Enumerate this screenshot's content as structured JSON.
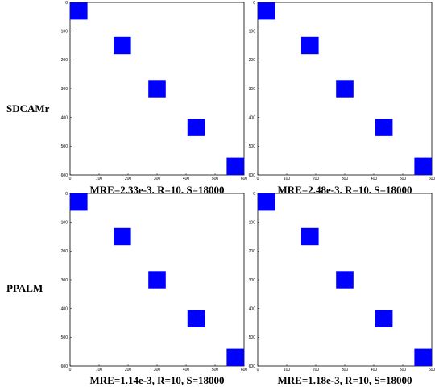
{
  "row_labels": [
    "SDCAMr",
    "PPALM"
  ],
  "chart_data": [
    {
      "type": "heatmap",
      "row_label": "SDCAMr",
      "caption": "MRE=2.33e-3,  R=10,  S=18000",
      "xlim": [
        0,
        600
      ],
      "ylim": [
        0,
        600
      ],
      "y_reversed": true,
      "xticks": [
        0,
        100,
        200,
        300,
        400,
        500,
        600
      ],
      "yticks": [
        0,
        100,
        200,
        300,
        400,
        500,
        600
      ],
      "blocks": [
        {
          "x0": 0,
          "x1": 60,
          "y0": 0,
          "y1": 60
        },
        {
          "x0": 150,
          "x1": 210,
          "y0": 120,
          "y1": 180
        },
        {
          "x0": 270,
          "x1": 330,
          "y0": 270,
          "y1": 330
        },
        {
          "x0": 405,
          "x1": 465,
          "y0": 405,
          "y1": 465
        },
        {
          "x0": 540,
          "x1": 600,
          "y0": 540,
          "y1": 600
        }
      ],
      "block_color": "#0000ff"
    },
    {
      "type": "heatmap",
      "row_label": "SDCAMr",
      "caption": "MRE=2.48e-3,  R=10,  S=18000",
      "xlim": [
        0,
        600
      ],
      "ylim": [
        0,
        600
      ],
      "y_reversed": true,
      "xticks": [
        0,
        100,
        200,
        300,
        400,
        500,
        600
      ],
      "yticks": [
        0,
        100,
        200,
        300,
        400,
        500,
        600
      ],
      "blocks": [
        {
          "x0": 0,
          "x1": 60,
          "y0": 0,
          "y1": 60
        },
        {
          "x0": 150,
          "x1": 210,
          "y0": 120,
          "y1": 180
        },
        {
          "x0": 270,
          "x1": 330,
          "y0": 270,
          "y1": 330
        },
        {
          "x0": 405,
          "x1": 465,
          "y0": 405,
          "y1": 465
        },
        {
          "x0": 540,
          "x1": 600,
          "y0": 540,
          "y1": 600
        }
      ],
      "block_color": "#0000ff"
    },
    {
      "type": "heatmap",
      "row_label": "PPALM",
      "caption": "MRE=1.14e-3,  R=10,  S=18000",
      "xlim": [
        0,
        600
      ],
      "ylim": [
        0,
        600
      ],
      "y_reversed": true,
      "xticks": [
        0,
        100,
        200,
        300,
        400,
        500,
        600
      ],
      "yticks": [
        0,
        100,
        200,
        300,
        400,
        500,
        600
      ],
      "blocks": [
        {
          "x0": 0,
          "x1": 60,
          "y0": 0,
          "y1": 60
        },
        {
          "x0": 150,
          "x1": 210,
          "y0": 120,
          "y1": 180
        },
        {
          "x0": 270,
          "x1": 330,
          "y0": 270,
          "y1": 330
        },
        {
          "x0": 405,
          "x1": 465,
          "y0": 405,
          "y1": 465
        },
        {
          "x0": 540,
          "x1": 600,
          "y0": 540,
          "y1": 600
        }
      ],
      "block_color": "#0000ff"
    },
    {
      "type": "heatmap",
      "row_label": "PPALM",
      "caption": "MRE=1.18e-3,  R=10,  S=18000",
      "xlim": [
        0,
        600
      ],
      "ylim": [
        0,
        600
      ],
      "y_reversed": true,
      "xticks": [
        0,
        100,
        200,
        300,
        400,
        500,
        600
      ],
      "yticks": [
        0,
        100,
        200,
        300,
        400,
        500,
        600
      ],
      "blocks": [
        {
          "x0": 0,
          "x1": 60,
          "y0": 0,
          "y1": 60
        },
        {
          "x0": 150,
          "x1": 210,
          "y0": 120,
          "y1": 180
        },
        {
          "x0": 270,
          "x1": 330,
          "y0": 270,
          "y1": 330
        },
        {
          "x0": 405,
          "x1": 465,
          "y0": 405,
          "y1": 465
        },
        {
          "x0": 540,
          "x1": 600,
          "y0": 540,
          "y1": 600
        }
      ],
      "block_color": "#0000ff"
    }
  ]
}
